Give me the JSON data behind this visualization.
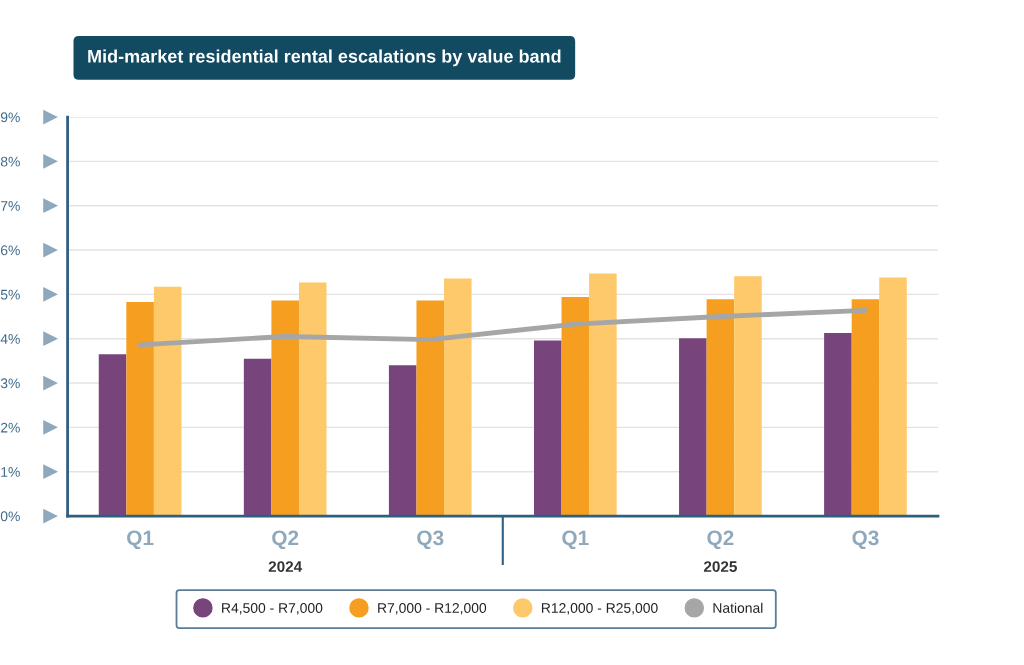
{
  "chart_data": {
    "type": "bar",
    "title": "Mid-market residential rental escalations by value band",
    "categories": [
      "Q1",
      "Q2",
      "Q3",
      "Q1",
      "Q2",
      "Q3"
    ],
    "series": [
      {
        "name": "R4,500 - R7,000",
        "color": "#77447c",
        "values": [
          3.65,
          3.55,
          3.4,
          3.96,
          4.01,
          4.13
        ]
      },
      {
        "name": "R7,000 - R12,000",
        "color": "#f59e20",
        "values": [
          4.83,
          4.86,
          4.86,
          4.94,
          4.89,
          4.89
        ]
      },
      {
        "name": "R12,000 - R25,000",
        "color": "#fdc96a",
        "values": [
          5.17,
          5.27,
          5.36,
          5.47,
          5.41,
          5.38
        ]
      },
      {
        "name": "National",
        "color": "#a6a6a6",
        "type": "line",
        "values": [
          3.86,
          4.05,
          3.98,
          4.33,
          4.5,
          4.64
        ]
      }
    ],
    "annotations": [
      "2024",
      "2025"
    ],
    "ylim": [
      0,
      9
    ],
    "yticks": [
      {
        "value": 0,
        "label": "0%"
      },
      {
        "value": 1,
        "label": "1%"
      },
      {
        "value": 2,
        "label": "2%"
      },
      {
        "value": 3,
        "label": "3%"
      },
      {
        "value": 4,
        "label": "4%"
      },
      {
        "value": 5,
        "label": "5%"
      },
      {
        "value": 6,
        "label": "6%"
      },
      {
        "value": 7,
        "label": "7%"
      },
      {
        "value": 8,
        "label": "8%"
      },
      {
        "value": 9,
        "label": "9%"
      }
    ],
    "grid": "y",
    "legend": "bottom",
    "marker": "none"
  }
}
